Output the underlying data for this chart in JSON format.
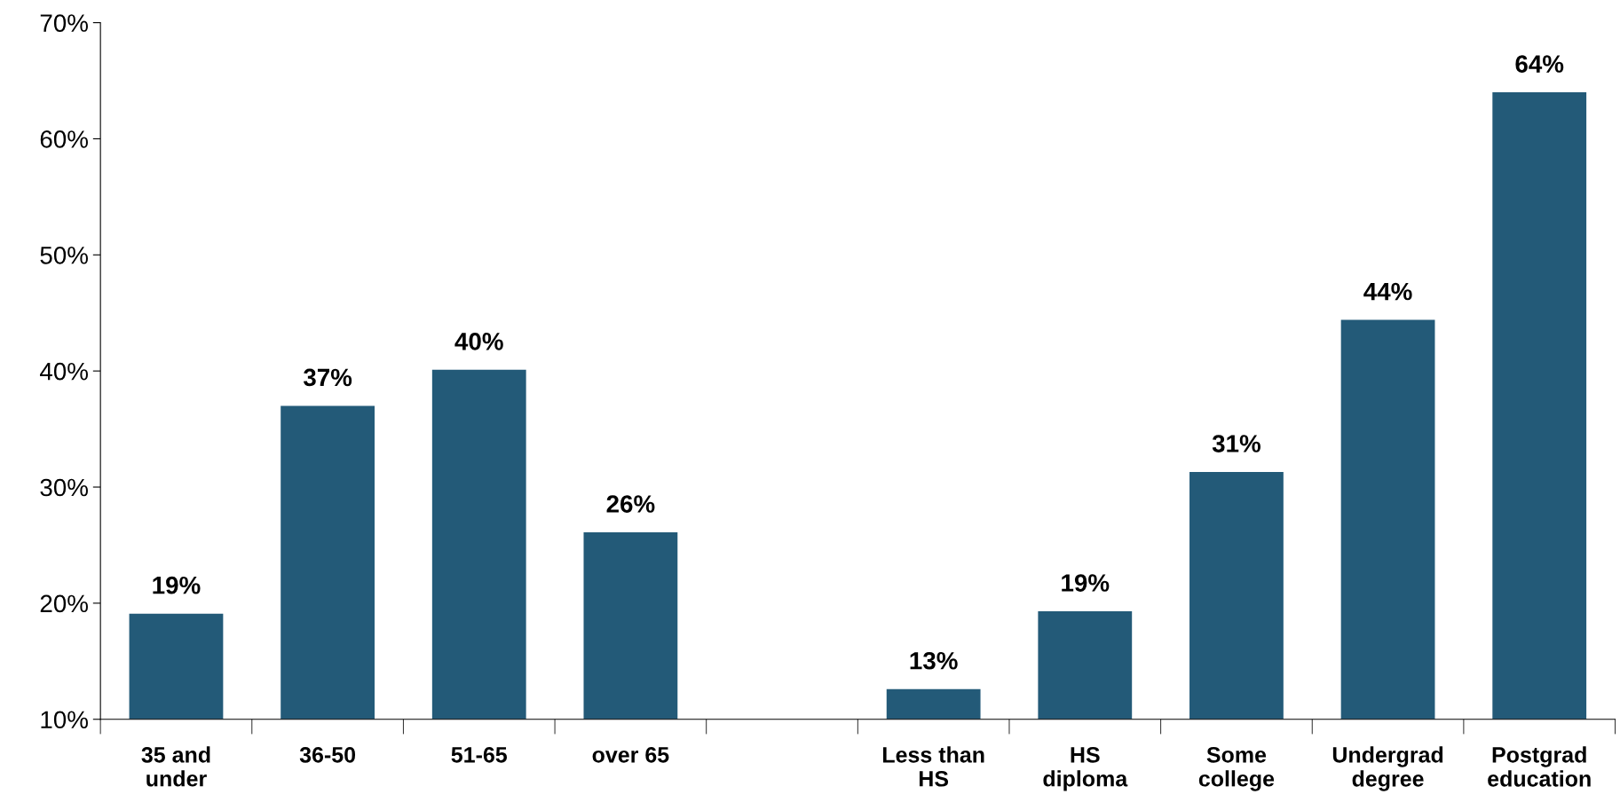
{
  "chart_data": {
    "type": "bar",
    "categories": [
      "35 and\nunder",
      "36-50",
      "51-65",
      "over 65",
      null,
      "Less than\nHS",
      "HS\ndiploma",
      "Some\ncollege",
      "Undergrad\ndegree",
      "Postgrad\neducation"
    ],
    "values": [
      19.1,
      37.0,
      40.1,
      26.1,
      null,
      12.6,
      19.3,
      31.3,
      44.4,
      64.0
    ],
    "value_labels": [
      "19%",
      "37%",
      "40%",
      "26%",
      null,
      "13%",
      "19%",
      "31%",
      "44%",
      "64%"
    ],
    "color": "#235a78",
    "ylim": [
      10,
      70
    ],
    "yticks": [
      {
        "value": 10,
        "label": "10%"
      },
      {
        "value": 20,
        "label": "20%"
      },
      {
        "value": 30,
        "label": "30%"
      },
      {
        "value": 40,
        "label": "40%"
      },
      {
        "value": 50,
        "label": "50%"
      },
      {
        "value": 60,
        "label": "60%"
      },
      {
        "value": 70,
        "label": "70%"
      }
    ],
    "grid": false,
    "legend": false
  }
}
